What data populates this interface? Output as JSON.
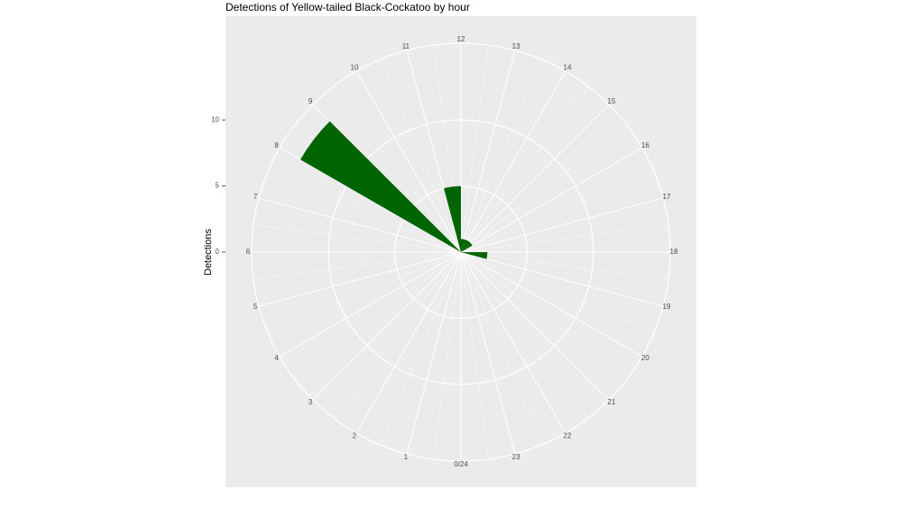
{
  "chart_data": {
    "type": "polar_bar",
    "title": "Detections of Yellow-tailed Black-Cockatoo by hour",
    "y_label": "Detections",
    "x": [
      0,
      1,
      2,
      3,
      4,
      5,
      6,
      7,
      8,
      9,
      10,
      11,
      12,
      13,
      14,
      15,
      16,
      17,
      18,
      19,
      20,
      21,
      22,
      23
    ],
    "series": [
      {
        "name": "Detections",
        "color": "#006400",
        "values": [
          0,
          0,
          0,
          0,
          0,
          0,
          0,
          0,
          14,
          0,
          0,
          5,
          1,
          1,
          1,
          1,
          0,
          0,
          2,
          0,
          0,
          0,
          0,
          0
        ]
      }
    ],
    "xlim": [
      0,
      24
    ],
    "xticks": [
      {
        "value": 0,
        "label": "0/24"
      },
      1,
      2,
      3,
      4,
      5,
      6,
      7,
      8,
      9,
      10,
      11,
      12,
      13,
      14,
      15,
      16,
      17,
      18,
      19,
      20,
      21,
      22,
      23
    ],
    "ylim": [
      0,
      15.8
    ],
    "yticks": [
      0,
      5,
      10
    ],
    "grid": true
  }
}
